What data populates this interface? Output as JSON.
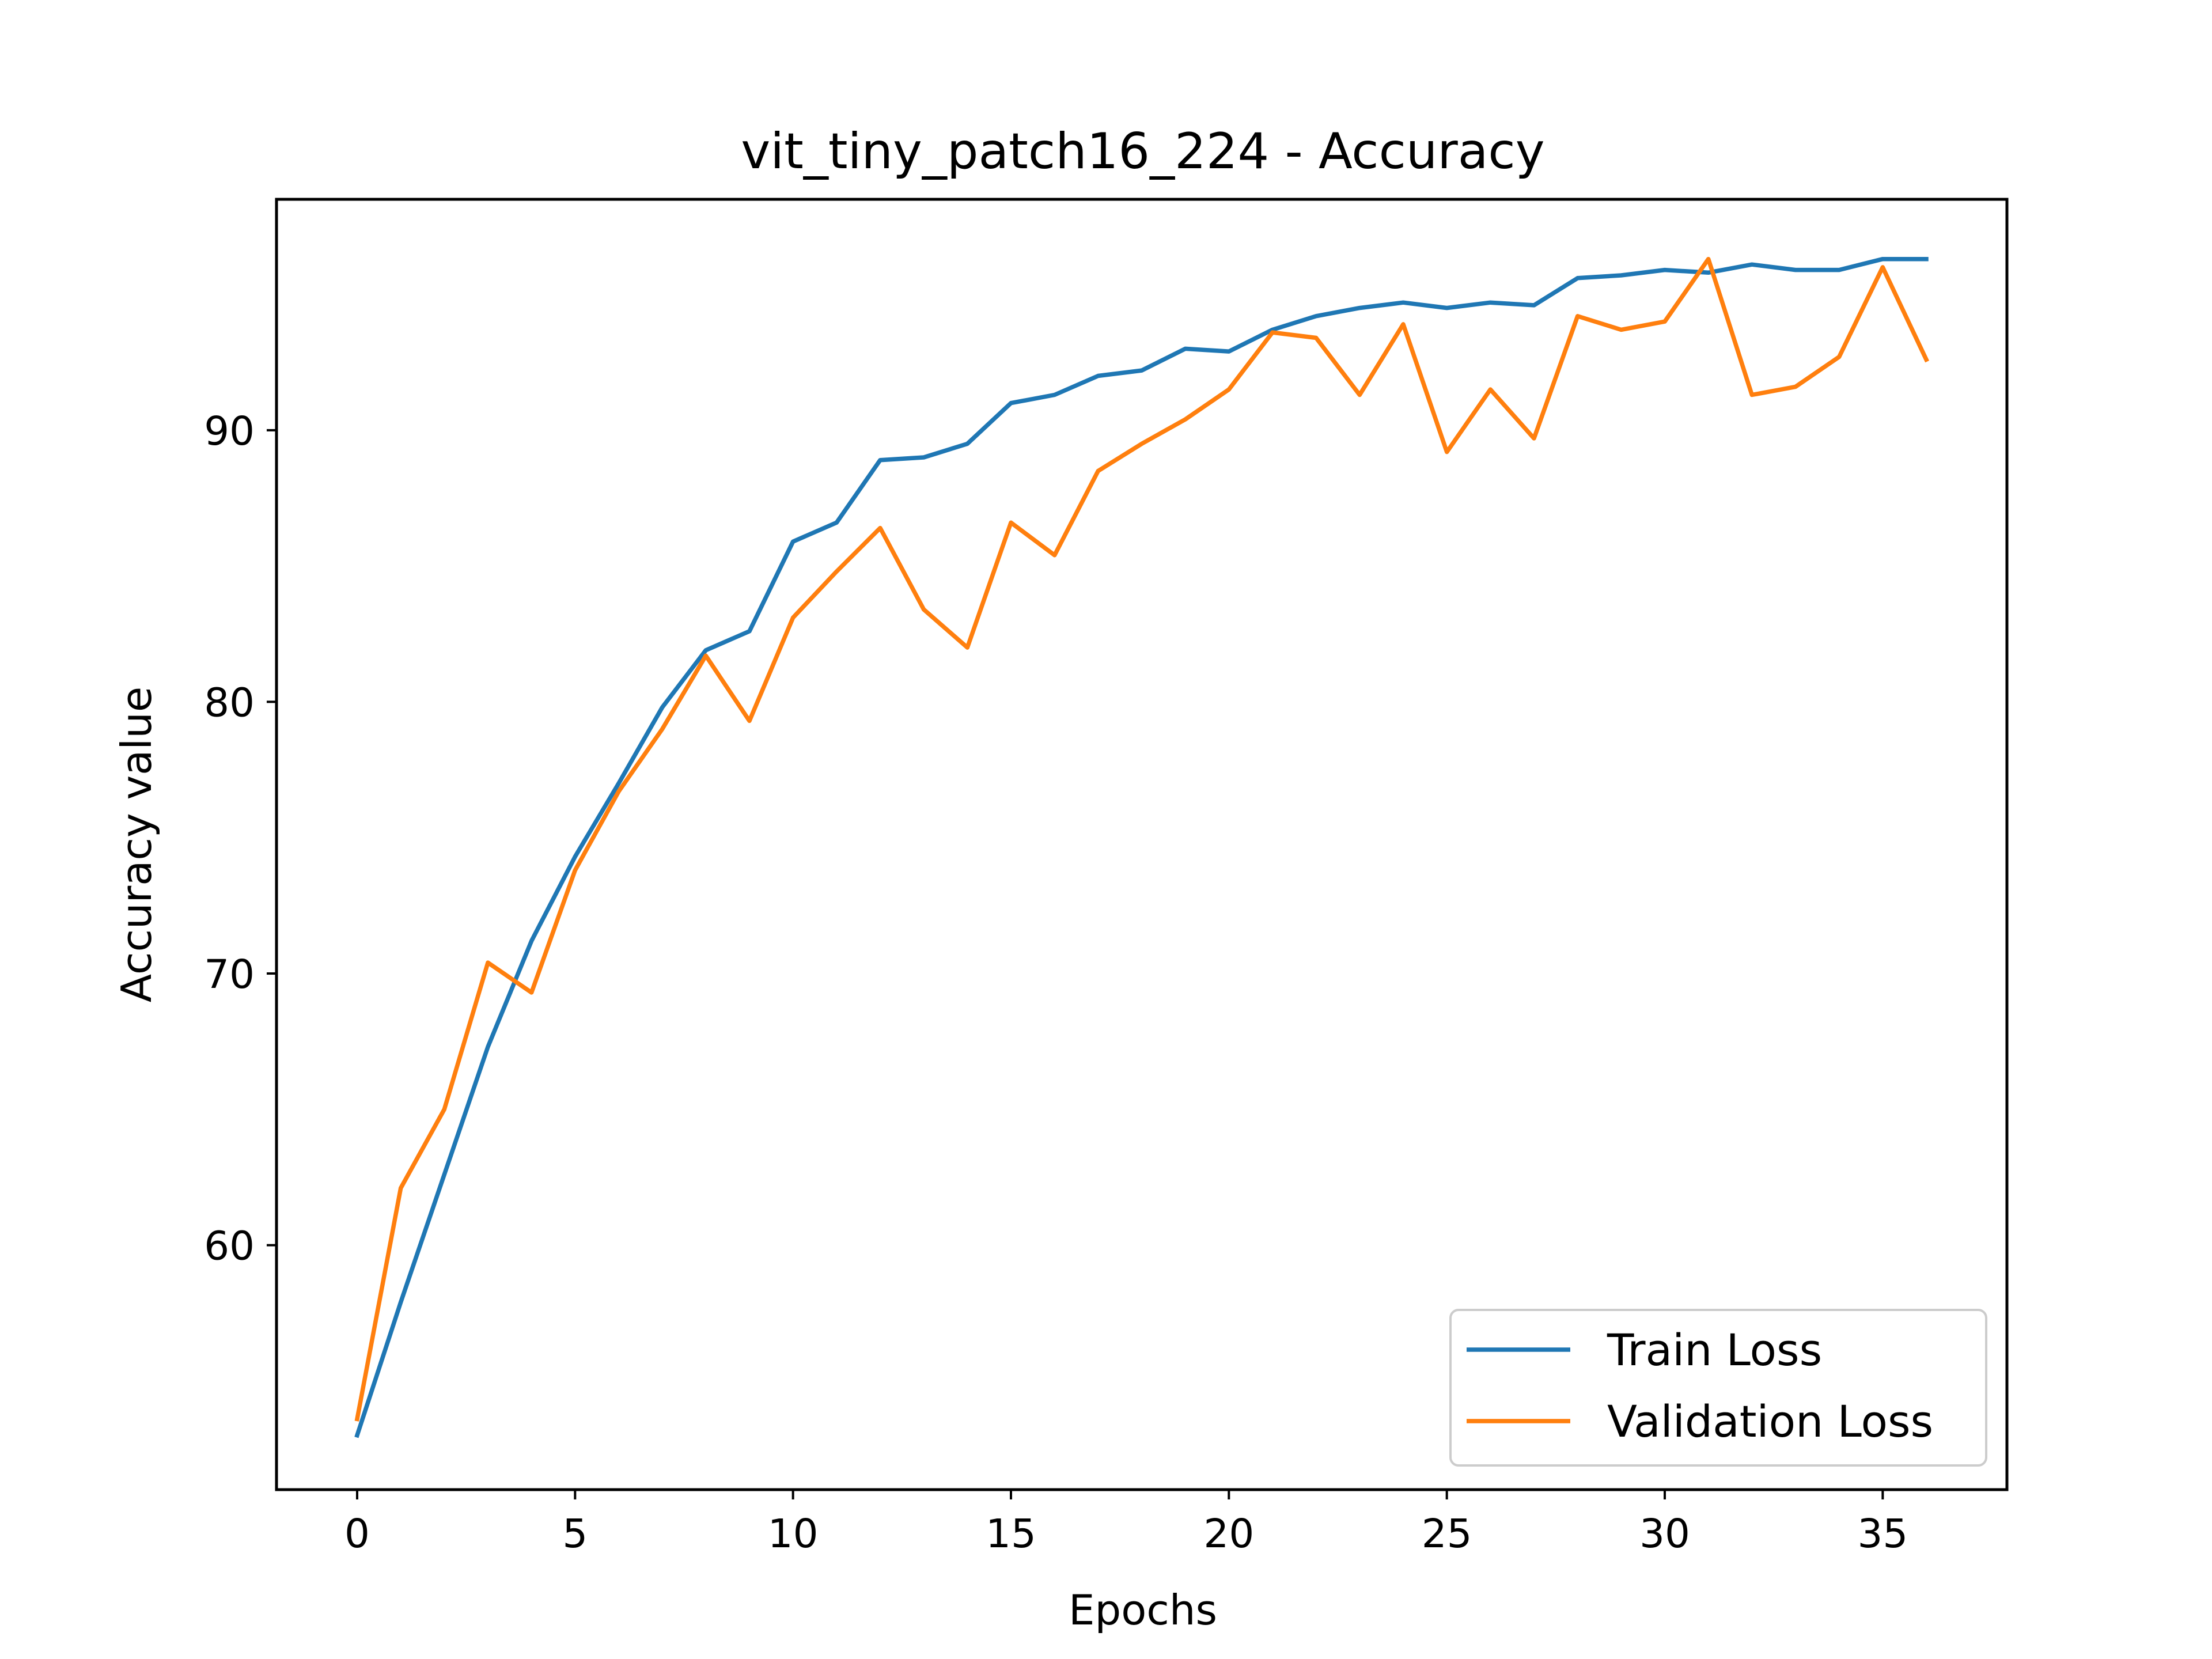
{
  "chart_data": {
    "type": "line",
    "title": "vit_tiny_patch16_224 - Accuracy",
    "xlabel": "Epochs",
    "ylabel": "Accuracy value",
    "xlim": [
      -1.85,
      37.85
    ],
    "ylim": [
      51.0,
      98.5
    ],
    "xticks": [
      0,
      5,
      10,
      15,
      20,
      25,
      30,
      35
    ],
    "yticks": [
      60,
      70,
      80,
      90
    ],
    "grid": false,
    "legend": "lower-right",
    "x": [
      0,
      1,
      2,
      3,
      4,
      5,
      6,
      7,
      8,
      9,
      10,
      11,
      12,
      13,
      14,
      15,
      16,
      17,
      18,
      19,
      20,
      21,
      22,
      23,
      24,
      25,
      26,
      27,
      28,
      29,
      30,
      31,
      32,
      33,
      34,
      35,
      36
    ],
    "series": [
      {
        "name": "Train Loss",
        "color": "#1f77b4",
        "values": [
          53.0,
          57.9,
          62.6,
          67.3,
          71.2,
          74.3,
          77.0,
          79.8,
          81.9,
          82.6,
          85.9,
          86.6,
          88.9,
          89.0,
          89.5,
          91.0,
          91.3,
          92.0,
          92.2,
          93.0,
          92.9,
          93.7,
          94.2,
          94.5,
          94.7,
          94.5,
          94.7,
          94.6,
          95.6,
          95.7,
          95.9,
          95.8,
          96.1,
          95.9,
          95.9,
          96.3,
          96.3
        ]
      },
      {
        "name": "Validation Loss",
        "color": "#ff7f0e",
        "values": [
          53.6,
          62.1,
          65.0,
          70.4,
          69.3,
          73.8,
          76.7,
          79.0,
          81.7,
          79.3,
          83.1,
          84.8,
          86.4,
          83.4,
          82.0,
          86.6,
          85.4,
          88.5,
          89.5,
          90.4,
          91.5,
          93.6,
          93.4,
          91.3,
          93.9,
          89.2,
          91.5,
          89.7,
          94.2,
          93.7,
          94.0,
          96.3,
          91.3,
          91.6,
          92.7,
          96.0,
          92.6
        ]
      }
    ]
  }
}
